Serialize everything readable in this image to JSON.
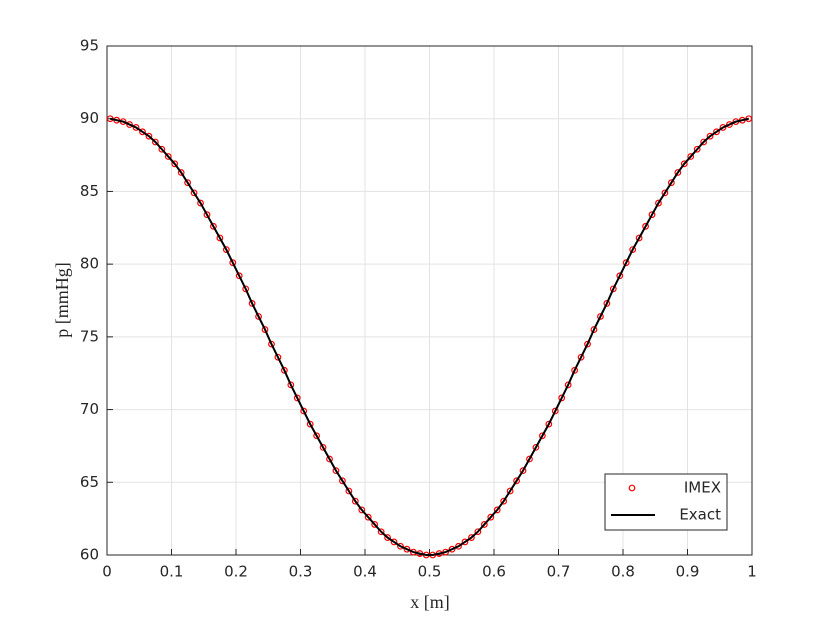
{
  "chart_data": {
    "type": "line",
    "xlabel": "x [m]",
    "ylabel": "p [mmHg]",
    "x": [
      0.005,
      0.015,
      0.025,
      0.035,
      0.045,
      0.055,
      0.065,
      0.075,
      0.085,
      0.095,
      0.105,
      0.115,
      0.125,
      0.135,
      0.145,
      0.155,
      0.165,
      0.175,
      0.185,
      0.195,
      0.205,
      0.215,
      0.225,
      0.235,
      0.245,
      0.255,
      0.265,
      0.275,
      0.285,
      0.295,
      0.305,
      0.315,
      0.325,
      0.335,
      0.345,
      0.355,
      0.365,
      0.375,
      0.385,
      0.395,
      0.405,
      0.415,
      0.425,
      0.435,
      0.445,
      0.455,
      0.465,
      0.475,
      0.485,
      0.495,
      0.505,
      0.515,
      0.525,
      0.535,
      0.545,
      0.555,
      0.565,
      0.575,
      0.585,
      0.595,
      0.605,
      0.615,
      0.625,
      0.635,
      0.645,
      0.655,
      0.665,
      0.675,
      0.685,
      0.695,
      0.705,
      0.715,
      0.725,
      0.735,
      0.745,
      0.755,
      0.765,
      0.775,
      0.785,
      0.795,
      0.805,
      0.815,
      0.825,
      0.835,
      0.845,
      0.855,
      0.865,
      0.875,
      0.885,
      0.895,
      0.905,
      0.915,
      0.925,
      0.935,
      0.945,
      0.955,
      0.965,
      0.975,
      0.985,
      0.995
    ],
    "series": [
      {
        "name": "IMEX",
        "color": "#ff0000",
        "marker": "circle",
        "values": [
          90.0,
          89.9,
          89.8,
          89.6,
          89.4,
          89.1,
          88.8,
          88.4,
          87.9,
          87.4,
          86.9,
          86.3,
          85.6,
          84.9,
          84.2,
          83.4,
          82.6,
          81.8,
          81.0,
          80.1,
          79.2,
          78.3,
          77.3,
          76.4,
          75.5,
          74.5,
          73.6,
          72.7,
          71.7,
          70.8,
          69.9,
          69.0,
          68.2,
          67.4,
          66.6,
          65.8,
          65.1,
          64.4,
          63.7,
          63.1,
          62.6,
          62.1,
          61.6,
          61.2,
          60.9,
          60.6,
          60.4,
          60.2,
          60.1,
          60.0,
          60.0,
          60.1,
          60.2,
          60.4,
          60.6,
          60.9,
          61.2,
          61.6,
          62.1,
          62.6,
          63.1,
          63.7,
          64.4,
          65.1,
          65.8,
          66.6,
          67.4,
          68.2,
          69.0,
          69.9,
          70.8,
          71.7,
          72.7,
          73.6,
          74.5,
          75.5,
          76.4,
          77.3,
          78.3,
          79.2,
          80.1,
          81.0,
          81.8,
          82.6,
          83.4,
          84.2,
          84.9,
          85.6,
          86.3,
          86.9,
          87.4,
          87.9,
          88.4,
          88.8,
          89.1,
          89.4,
          89.6,
          89.8,
          89.9,
          90.0
        ]
      },
      {
        "name": "Exact",
        "color": "#000000",
        "marker": "none",
        "values": [
          90.0,
          89.9,
          89.8,
          89.6,
          89.4,
          89.1,
          88.8,
          88.4,
          87.9,
          87.4,
          86.9,
          86.3,
          85.6,
          84.9,
          84.2,
          83.4,
          82.6,
          81.8,
          81.0,
          80.1,
          79.2,
          78.3,
          77.3,
          76.4,
          75.5,
          74.5,
          73.6,
          72.7,
          71.7,
          70.8,
          69.9,
          69.0,
          68.2,
          67.4,
          66.6,
          65.8,
          65.1,
          64.4,
          63.7,
          63.1,
          62.6,
          62.1,
          61.6,
          61.2,
          60.9,
          60.6,
          60.4,
          60.2,
          60.1,
          60.0,
          60.0,
          60.1,
          60.2,
          60.4,
          60.6,
          60.9,
          61.2,
          61.6,
          62.1,
          62.6,
          63.1,
          63.7,
          64.4,
          65.1,
          65.8,
          66.6,
          67.4,
          68.2,
          69.0,
          69.9,
          70.8,
          71.7,
          72.7,
          73.6,
          74.5,
          75.5,
          76.4,
          77.3,
          78.3,
          79.2,
          80.1,
          81.0,
          81.8,
          82.6,
          83.4,
          84.2,
          84.9,
          85.6,
          86.3,
          86.9,
          87.4,
          87.9,
          88.4,
          88.8,
          89.1,
          89.4,
          89.6,
          89.8,
          89.9,
          90.0
        ]
      }
    ],
    "xlim": [
      0,
      1
    ],
    "xticks": [
      0,
      0.1,
      0.2,
      0.3,
      0.4,
      0.5,
      0.6,
      0.7,
      0.8,
      0.9,
      1
    ],
    "ylim": [
      60,
      95
    ],
    "yticks": [
      60,
      65,
      70,
      75,
      80,
      85,
      90,
      95
    ],
    "grid": true,
    "legend": "lower right"
  }
}
